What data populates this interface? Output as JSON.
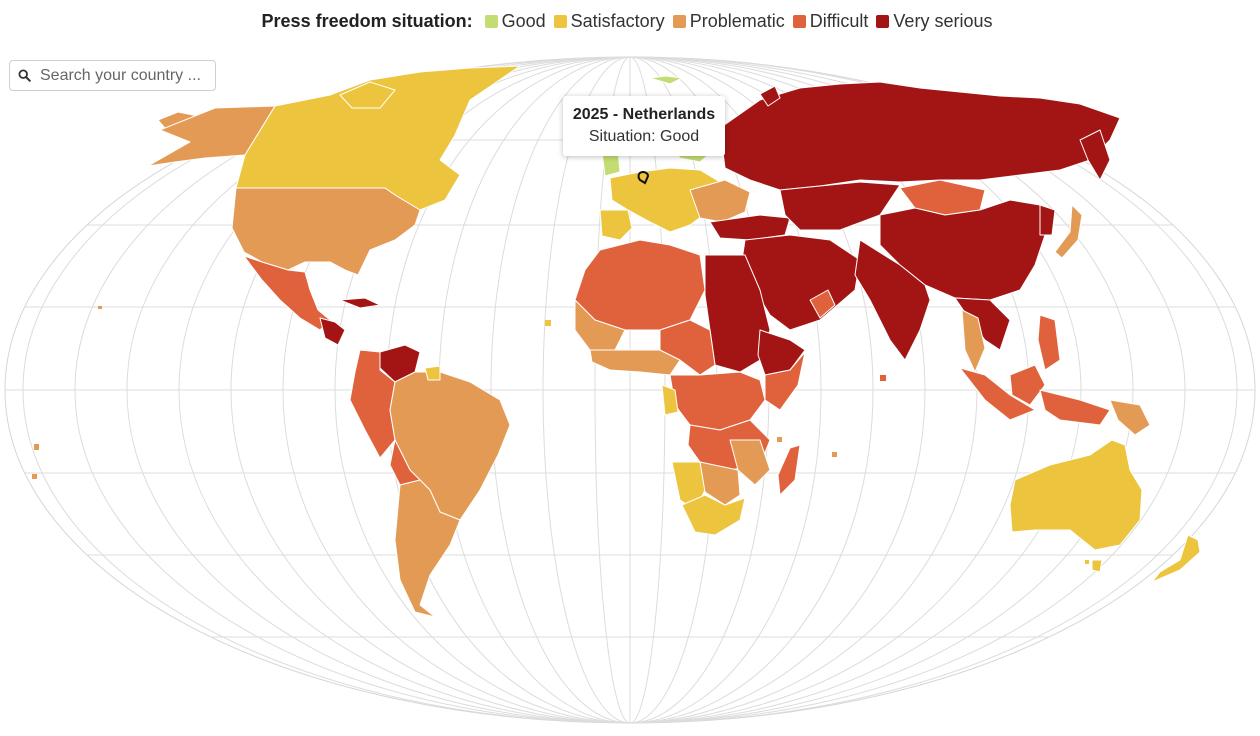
{
  "legend": {
    "title": "Press freedom situation:",
    "items": [
      {
        "label": "Good",
        "color": "#c3dd72"
      },
      {
        "label": "Satisfactory",
        "color": "#ecc43d"
      },
      {
        "label": "Problematic",
        "color": "#e39a55"
      },
      {
        "label": "Difficult",
        "color": "#e0623c"
      },
      {
        "label": "Very serious",
        "color": "#a31515"
      }
    ]
  },
  "search": {
    "placeholder": "Search your country ..."
  },
  "tooltip": {
    "title": "2025 - Netherlands",
    "subtitle": "Situation: Good"
  },
  "icons": {
    "search": "search-icon",
    "pin": "location-pin-icon"
  }
}
